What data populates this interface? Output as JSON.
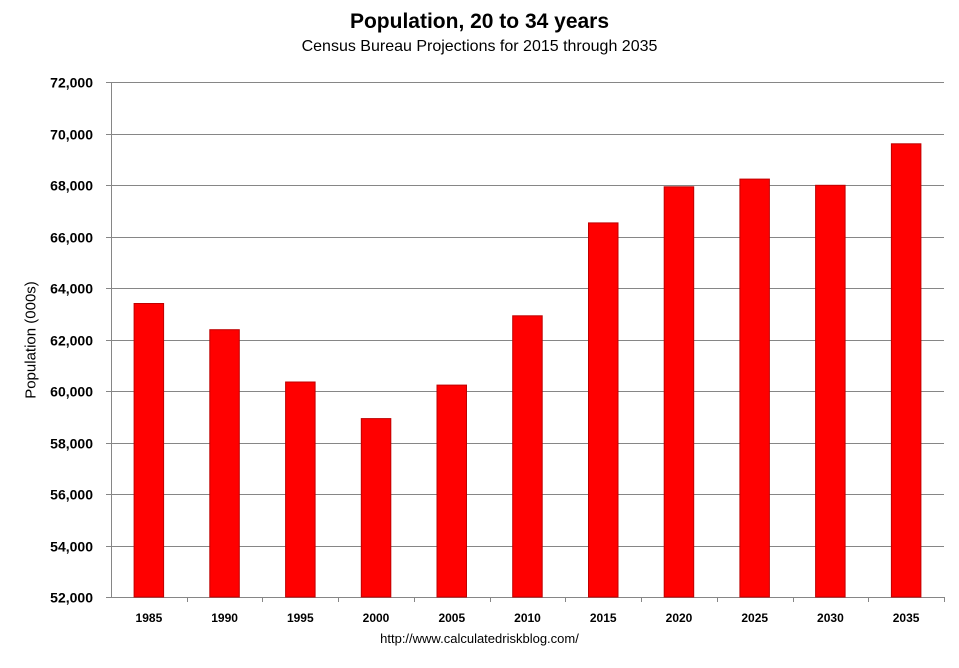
{
  "chart_data": {
    "type": "bar",
    "title": "Population, 20 to 34 years",
    "subtitle": "Census Bureau Projections for 2015 through 2035",
    "xlabel": "",
    "ylabel": "Population (000s)",
    "source": "http://www.calculatedriskblog.com/",
    "categories": [
      "1985",
      "1990",
      "1995",
      "2000",
      "2005",
      "2010",
      "2015",
      "2020",
      "2025",
      "2030",
      "2035"
    ],
    "values": [
      63400,
      62380,
      60350,
      58930,
      60230,
      62920,
      66530,
      67930,
      68230,
      67990,
      69600
    ],
    "ylim": [
      52000,
      72000
    ],
    "yticks": [
      52000,
      54000,
      56000,
      58000,
      60000,
      62000,
      64000,
      66000,
      68000,
      70000,
      72000
    ],
    "ytick_labels": [
      "52,000",
      "54,000",
      "56,000",
      "58,000",
      "60,000",
      "62,000",
      "64,000",
      "66,000",
      "68,000",
      "70,000",
      "72,000"
    ],
    "grid": true,
    "legend": "none",
    "bar_color": "#ff0000",
    "bar_edge_color": "#c00000",
    "grid_color": "#868686",
    "axis_color": "#868686"
  }
}
